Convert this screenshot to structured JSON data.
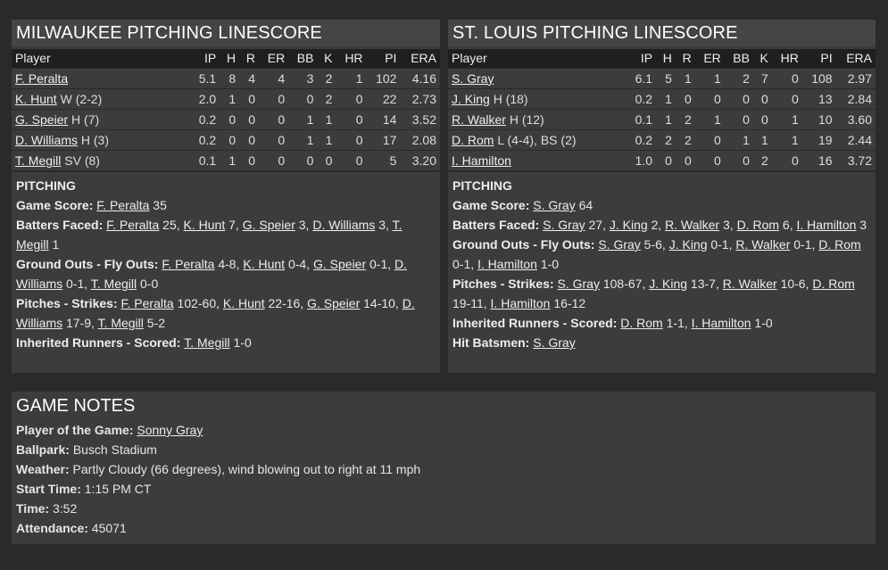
{
  "columns": [
    "Player",
    "IP",
    "H",
    "R",
    "ER",
    "BB",
    "K",
    "HR",
    "PI",
    "ERA"
  ],
  "milwaukee": {
    "title": "MILWAUKEE PITCHING LINESCORE",
    "rows": [
      {
        "name": "F. Peralta",
        "note": "",
        "stats": [
          "5.1",
          "8",
          "4",
          "4",
          "3",
          "2",
          "1",
          "102",
          "4.16"
        ]
      },
      {
        "name": "K. Hunt",
        "note": " W (2-2)",
        "stats": [
          "2.0",
          "1",
          "0",
          "0",
          "0",
          "2",
          "0",
          "22",
          "2.73"
        ]
      },
      {
        "name": "G. Speier",
        "note": " H (7)",
        "stats": [
          "0.2",
          "0",
          "0",
          "0",
          "1",
          "1",
          "0",
          "14",
          "3.52"
        ]
      },
      {
        "name": "D. Williams",
        "note": " H (3)",
        "stats": [
          "0.2",
          "0",
          "0",
          "0",
          "1",
          "1",
          "0",
          "17",
          "2.08"
        ]
      },
      {
        "name": "T. Megill",
        "note": " SV (8)",
        "stats": [
          "0.1",
          "1",
          "0",
          "0",
          "0",
          "0",
          "0",
          "5",
          "3.20"
        ]
      }
    ],
    "section_title": "PITCHING",
    "lines": [
      {
        "label": "Game Score: ",
        "parts": [
          {
            "l": "F. Peralta"
          },
          {
            "t": " 35"
          }
        ]
      },
      {
        "label": "Batters Faced: ",
        "parts": [
          {
            "l": "F. Peralta"
          },
          {
            "t": " 25, "
          },
          {
            "l": "K. Hunt"
          },
          {
            "t": " 7, "
          },
          {
            "l": "G. Speier"
          },
          {
            "t": " 3, "
          },
          {
            "l": "D. Williams"
          },
          {
            "t": " 3, "
          },
          {
            "l": "T. Megill"
          },
          {
            "t": " 1"
          }
        ]
      },
      {
        "label": "Ground Outs - Fly Outs: ",
        "parts": [
          {
            "l": "F. Peralta"
          },
          {
            "t": " 4-8, "
          },
          {
            "l": "K. Hunt"
          },
          {
            "t": " 0-4, "
          },
          {
            "l": "G. Speier"
          },
          {
            "t": " 0-1, "
          },
          {
            "l": "D. Williams"
          },
          {
            "t": " 0-1, "
          },
          {
            "l": "T. Megill"
          },
          {
            "t": " 0-0"
          }
        ]
      },
      {
        "label": "Pitches - Strikes: ",
        "parts": [
          {
            "l": "F. Peralta"
          },
          {
            "t": " 102-60, "
          },
          {
            "l": "K. Hunt"
          },
          {
            "t": " 22-16, "
          },
          {
            "l": "G. Speier"
          },
          {
            "t": " 14-10, "
          },
          {
            "l": "D. Williams"
          },
          {
            "t": " 17-9, "
          },
          {
            "l": "T. Megill"
          },
          {
            "t": " 5-2"
          }
        ]
      },
      {
        "label": "Inherited Runners - Scored: ",
        "parts": [
          {
            "l": "T. Megill"
          },
          {
            "t": " 1-0"
          }
        ]
      }
    ]
  },
  "stlouis": {
    "title": "ST. LOUIS PITCHING LINESCORE",
    "rows": [
      {
        "name": "S. Gray",
        "note": "",
        "stats": [
          "6.1",
          "5",
          "1",
          "1",
          "2",
          "7",
          "0",
          "108",
          "2.97"
        ]
      },
      {
        "name": "J. King",
        "note": " H (18)",
        "stats": [
          "0.2",
          "1",
          "0",
          "0",
          "0",
          "0",
          "0",
          "13",
          "2.84"
        ]
      },
      {
        "name": "R. Walker",
        "note": " H (12)",
        "stats": [
          "0.1",
          "1",
          "2",
          "1",
          "0",
          "0",
          "1",
          "10",
          "3.60"
        ]
      },
      {
        "name": "D. Rom",
        "note": " L (4-4), BS (2)",
        "stats": [
          "0.2",
          "2",
          "2",
          "0",
          "1",
          "1",
          "1",
          "19",
          "2.44"
        ]
      },
      {
        "name": "I. Hamilton",
        "note": "",
        "stats": [
          "1.0",
          "0",
          "0",
          "0",
          "0",
          "2",
          "0",
          "16",
          "3.72"
        ]
      }
    ],
    "section_title": "PITCHING",
    "lines": [
      {
        "label": "Game Score: ",
        "parts": [
          {
            "l": "S. Gray"
          },
          {
            "t": " 64"
          }
        ]
      },
      {
        "label": "Batters Faced: ",
        "parts": [
          {
            "l": "S. Gray"
          },
          {
            "t": " 27, "
          },
          {
            "l": "J. King"
          },
          {
            "t": " 2, "
          },
          {
            "l": "R. Walker"
          },
          {
            "t": " 3, "
          },
          {
            "l": "D. Rom"
          },
          {
            "t": " 6, "
          },
          {
            "l": "I. Hamilton"
          },
          {
            "t": " 3"
          }
        ]
      },
      {
        "label": "Ground Outs - Fly Outs: ",
        "parts": [
          {
            "l": "S. Gray"
          },
          {
            "t": " 5-6, "
          },
          {
            "l": "J. King"
          },
          {
            "t": " 0-1, "
          },
          {
            "l": "R. Walker"
          },
          {
            "t": " 0-1, "
          },
          {
            "l": "D. Rom"
          },
          {
            "t": " 0-1, "
          },
          {
            "l": "I. Hamilton"
          },
          {
            "t": " 1-0"
          }
        ]
      },
      {
        "label": "Pitches - Strikes: ",
        "parts": [
          {
            "l": "S. Gray"
          },
          {
            "t": " 108-67, "
          },
          {
            "l": "J. King"
          },
          {
            "t": " 13-7, "
          },
          {
            "l": "R. Walker"
          },
          {
            "t": " 10-6, "
          },
          {
            "l": "D. Rom"
          },
          {
            "t": " 19-11, "
          },
          {
            "l": "I. Hamilton"
          },
          {
            "t": " 16-12"
          }
        ]
      },
      {
        "label": "Inherited Runners - Scored: ",
        "parts": [
          {
            "l": "D. Rom"
          },
          {
            "t": " 1-1, "
          },
          {
            "l": "I. Hamilton"
          },
          {
            "t": " 1-0"
          }
        ]
      },
      {
        "label": "Hit Batsmen: ",
        "parts": [
          {
            "l": "S. Gray"
          }
        ]
      }
    ]
  },
  "notes": {
    "title": "GAME NOTES",
    "lines": [
      {
        "label": "Player of the Game: ",
        "parts": [
          {
            "l": "Sonny Gray"
          }
        ]
      },
      {
        "label": "Ballpark: ",
        "parts": [
          {
            "t": "Busch Stadium"
          }
        ]
      },
      {
        "label": "Weather: ",
        "parts": [
          {
            "t": "Partly Cloudy (66 degrees), wind blowing out to right at 11 mph"
          }
        ]
      },
      {
        "label": "Start Time: ",
        "parts": [
          {
            "t": "1:15 PM CT"
          }
        ]
      },
      {
        "label": "Time: ",
        "parts": [
          {
            "t": "3:52"
          }
        ]
      },
      {
        "label": "Attendance: ",
        "parts": [
          {
            "t": "45071"
          }
        ]
      }
    ]
  }
}
